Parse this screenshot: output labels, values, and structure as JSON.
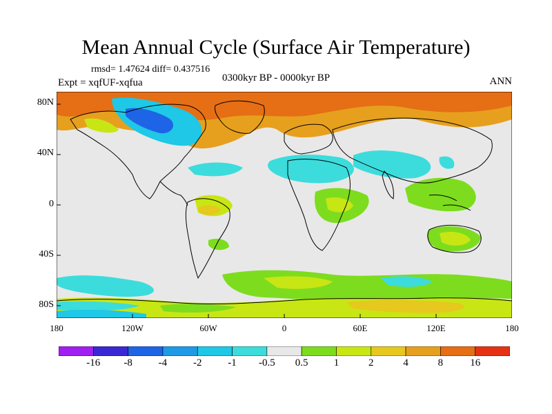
{
  "title": "Mean Annual Cycle (Surface Air Temperature)",
  "stats": {
    "text": "rmsd= 1.47624 diff= 0.437516"
  },
  "experiment": "Expt = xqfUF-xqfua",
  "period": "0300kyr BP - 0000kyr BP",
  "season": "ANN",
  "y_ticks": [
    "80N",
    "40N",
    "0",
    "40S",
    "80S"
  ],
  "x_ticks": [
    "180",
    "120W",
    "60W",
    "0",
    "60E",
    "120E",
    "180"
  ],
  "colorbar": {
    "labels": [
      "-16",
      "-8",
      "-4",
      "-2",
      "-1",
      "-0.5",
      "0.5",
      "1",
      "2",
      "4",
      "8",
      "16"
    ],
    "colors": [
      "#a020f0",
      "#3c28d2",
      "#1e64e6",
      "#1e9ae6",
      "#1ec8e6",
      "#3cdcdc",
      "#e8e8e8",
      "#7ddc1e",
      "#c8e614",
      "#e6c81e",
      "#e6a01e",
      "#e66e14",
      "#e63214"
    ]
  },
  "palette": {
    "neutral": "#e8e8e8",
    "green": "#7ddc1e",
    "yellowgreen": "#c8e614",
    "yellow": "#e6c81e",
    "orange": "#e6a01e",
    "darkorange": "#e66e14",
    "cyan": "#3cdcdc",
    "lightblue": "#1ec8e6",
    "blue": "#1e9ae6"
  }
}
